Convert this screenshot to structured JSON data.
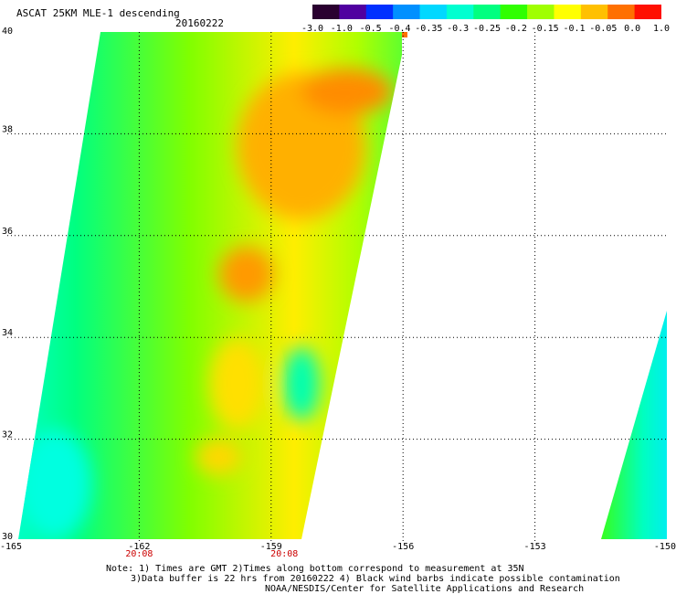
{
  "title": "ASCAT 25KM MLE-1 descending",
  "date": "20160222",
  "colorbar": {
    "labels": [
      "-3.0",
      "-1.0",
      "-0.5",
      "-0.4",
      "-0.35",
      "-0.3",
      "-0.25",
      "-0.2",
      "-0.15",
      "-0.1",
      "-0.05",
      "0.0",
      "1.0"
    ],
    "colors": [
      "#2a0030",
      "#5000a0",
      "#0030ff",
      "#0090ff",
      "#00d8ff",
      "#00ffd0",
      "#00ff80",
      "#30ff00",
      "#a0ff00",
      "#ffff00",
      "#ffc000",
      "#ff7000",
      "#ff1000"
    ]
  },
  "axes": {
    "lon_ticks": [
      "-165",
      "-162",
      "-159",
      "-156",
      "-153",
      "-150"
    ],
    "lat_ticks": [
      "30",
      "32",
      "34",
      "36",
      "38",
      "40"
    ],
    "lon_range": [
      -165,
      -150
    ],
    "lat_range": [
      30,
      40
    ]
  },
  "time_labels": [
    {
      "text": "20:08",
      "lon": -162.0
    },
    {
      "text": "20:08",
      "lon": -158.7
    }
  ],
  "notes": [
    "Note: 1) Times are GMT 2)Times along bottom correspond to measurement at 35N",
    "3)Data buffer is 22 hrs from 20160222 4) Black wind barbs indicate possible contamination",
    "NOAA/NESDIS/Center for Satellite Applications and Research"
  ]
}
